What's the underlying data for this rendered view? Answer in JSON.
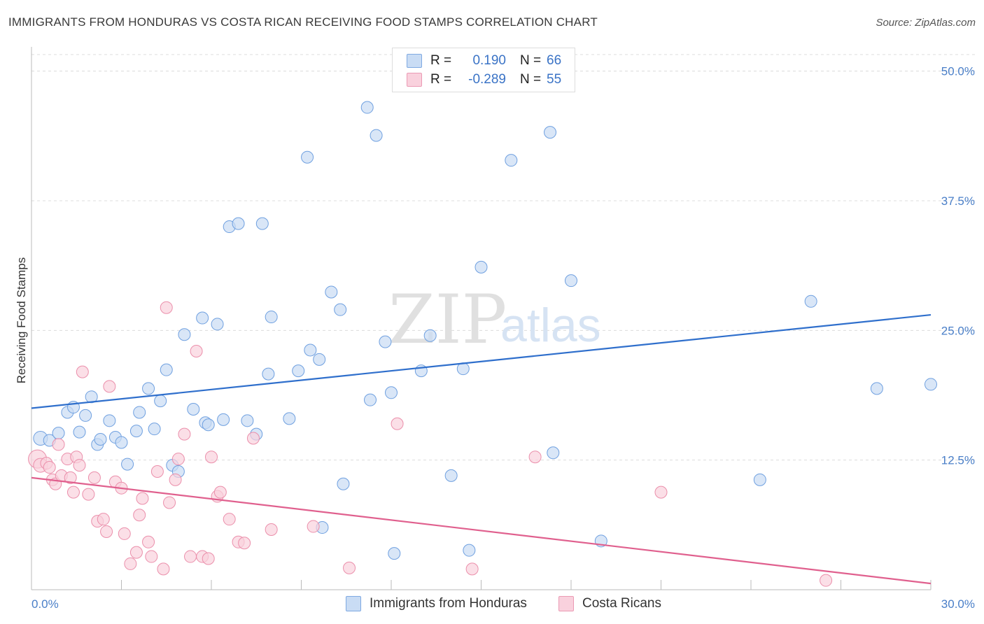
{
  "header": {
    "title": "IMMIGRANTS FROM HONDURAS VS COSTA RICAN RECEIVING FOOD STAMPS CORRELATION CHART",
    "source": "Source: ZipAtlas.com"
  },
  "legend": {
    "rows": [
      {
        "r_label": "R =",
        "r_value": "0.190",
        "n_label": "N =",
        "n_value": "66",
        "color": "#a9c8ef"
      },
      {
        "r_label": "R =",
        "r_value": "-0.289",
        "n_label": "N =",
        "n_value": "55",
        "color": "#f6b9cc"
      }
    ]
  },
  "watermark": {
    "zip": "ZIP",
    "atlas": "atlas"
  },
  "chart_data": {
    "type": "scatter",
    "xlim": [
      0,
      30
    ],
    "ylim": [
      0,
      52
    ],
    "ylabel": "Receiving Food Stamps",
    "x_tick_labels": [
      "0.0%",
      "30.0%"
    ],
    "y_ticks": [
      12.5,
      25.0,
      37.5,
      50.0
    ],
    "y_tick_labels": [
      "12.5%",
      "25.0%",
      "37.5%",
      "50.0%"
    ],
    "grid": "dashed horizontal",
    "legend_placement": "top-center",
    "series": [
      {
        "name": "Immigrants from Honduras",
        "color": "#6fa0e0",
        "fill": "#c9dcf4",
        "trend": {
          "x": [
            0,
            30
          ],
          "y": [
            17.5,
            26.5
          ],
          "color": "#2f6fcc"
        },
        "points": [
          [
            0.3,
            14.6
          ],
          [
            0.6,
            14.4
          ],
          [
            0.9,
            15.1
          ],
          [
            1.2,
            17.1
          ],
          [
            1.4,
            17.6
          ],
          [
            1.6,
            15.2
          ],
          [
            1.8,
            16.8
          ],
          [
            2.0,
            18.6
          ],
          [
            2.2,
            14.0
          ],
          [
            2.3,
            14.5
          ],
          [
            2.6,
            16.3
          ],
          [
            2.8,
            14.7
          ],
          [
            3.0,
            14.2
          ],
          [
            3.2,
            12.1
          ],
          [
            3.5,
            15.3
          ],
          [
            3.6,
            17.1
          ],
          [
            3.9,
            19.4
          ],
          [
            4.1,
            15.5
          ],
          [
            4.3,
            18.2
          ],
          [
            4.5,
            21.2
          ],
          [
            4.7,
            12.0
          ],
          [
            4.9,
            11.4
          ],
          [
            5.1,
            24.6
          ],
          [
            5.4,
            17.4
          ],
          [
            5.7,
            26.2
          ],
          [
            5.8,
            16.1
          ],
          [
            5.9,
            15.9
          ],
          [
            6.2,
            25.6
          ],
          [
            6.4,
            16.4
          ],
          [
            6.6,
            35.0
          ],
          [
            6.9,
            35.3
          ],
          [
            7.2,
            16.3
          ],
          [
            7.5,
            15.0
          ],
          [
            7.7,
            35.3
          ],
          [
            7.9,
            20.8
          ],
          [
            8.0,
            26.3
          ],
          [
            8.6,
            16.5
          ],
          [
            8.9,
            21.1
          ],
          [
            9.2,
            41.7
          ],
          [
            9.3,
            23.1
          ],
          [
            9.6,
            22.2
          ],
          [
            9.7,
            6.0
          ],
          [
            10.0,
            28.7
          ],
          [
            10.3,
            27.0
          ],
          [
            10.4,
            10.2
          ],
          [
            11.2,
            46.5
          ],
          [
            11.3,
            18.3
          ],
          [
            11.5,
            43.8
          ],
          [
            11.8,
            23.9
          ],
          [
            12.0,
            19.0
          ],
          [
            12.1,
            3.5
          ],
          [
            13.0,
            21.1
          ],
          [
            13.3,
            24.5
          ],
          [
            14.0,
            11.0
          ],
          [
            14.4,
            21.3
          ],
          [
            14.6,
            3.8
          ],
          [
            15.0,
            31.1
          ],
          [
            16.0,
            41.4
          ],
          [
            17.3,
            44.1
          ],
          [
            17.4,
            13.2
          ],
          [
            18.0,
            29.8
          ],
          [
            19.0,
            4.7
          ],
          [
            24.3,
            10.6
          ],
          [
            26.0,
            27.8
          ],
          [
            28.2,
            19.4
          ],
          [
            30.0,
            19.8
          ]
        ]
      },
      {
        "name": "Costa Ricans",
        "color": "#eb8fab",
        "fill": "#f9d1dd",
        "trend": {
          "x": [
            0,
            30
          ],
          "y": [
            10.8,
            0.6
          ],
          "color": "#e0608e"
        },
        "points": [
          [
            0.2,
            12.6
          ],
          [
            0.3,
            12.0
          ],
          [
            0.5,
            12.2
          ],
          [
            0.6,
            11.8
          ],
          [
            0.7,
            10.6
          ],
          [
            0.8,
            10.2
          ],
          [
            0.9,
            14.0
          ],
          [
            1.0,
            11.0
          ],
          [
            1.2,
            12.6
          ],
          [
            1.3,
            10.8
          ],
          [
            1.4,
            9.4
          ],
          [
            1.5,
            12.8
          ],
          [
            1.6,
            12.0
          ],
          [
            1.7,
            21.0
          ],
          [
            1.9,
            9.2
          ],
          [
            2.1,
            10.8
          ],
          [
            2.2,
            6.6
          ],
          [
            2.4,
            6.8
          ],
          [
            2.5,
            5.6
          ],
          [
            2.6,
            19.6
          ],
          [
            2.8,
            10.4
          ],
          [
            3.0,
            9.8
          ],
          [
            3.1,
            5.4
          ],
          [
            3.3,
            2.5
          ],
          [
            3.5,
            3.6
          ],
          [
            3.6,
            7.2
          ],
          [
            3.7,
            8.8
          ],
          [
            3.9,
            4.6
          ],
          [
            4.0,
            3.2
          ],
          [
            4.2,
            11.4
          ],
          [
            4.4,
            2.0
          ],
          [
            4.5,
            27.2
          ],
          [
            4.6,
            8.4
          ],
          [
            4.8,
            10.6
          ],
          [
            4.9,
            12.6
          ],
          [
            5.1,
            15.0
          ],
          [
            5.3,
            3.2
          ],
          [
            5.5,
            23.0
          ],
          [
            5.7,
            3.2
          ],
          [
            5.9,
            3.0
          ],
          [
            6.0,
            12.8
          ],
          [
            6.2,
            9.0
          ],
          [
            6.3,
            9.4
          ],
          [
            6.6,
            6.8
          ],
          [
            6.9,
            4.6
          ],
          [
            7.1,
            4.5
          ],
          [
            7.4,
            14.6
          ],
          [
            8.0,
            5.8
          ],
          [
            9.4,
            6.1
          ],
          [
            10.6,
            2.1
          ],
          [
            12.2,
            16.0
          ],
          [
            14.7,
            2.0
          ],
          [
            16.8,
            12.8
          ],
          [
            21.0,
            9.4
          ],
          [
            26.5,
            0.9
          ]
        ]
      }
    ]
  }
}
